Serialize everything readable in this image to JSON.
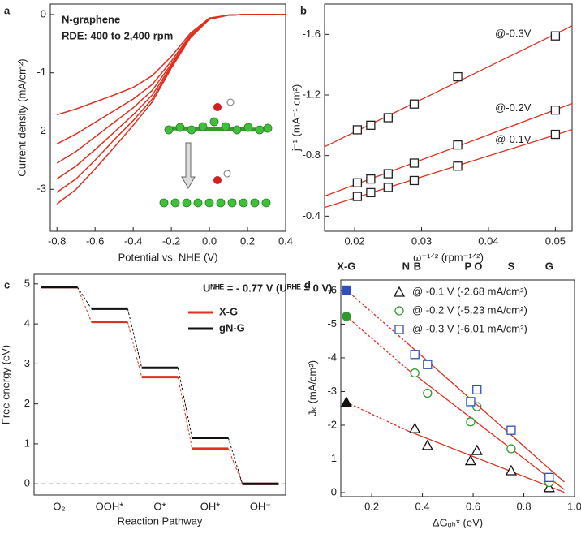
{
  "chart_data": [
    {
      "type": "line",
      "panel": "a",
      "title": "N-graphene",
      "subtitle": "RDE: 400 to 2,400 rpm",
      "x_label": "Potential vs. NHE (V)",
      "y_label": "Current density (mA/cm²)",
      "x": [
        -0.8,
        -0.7,
        -0.6,
        -0.5,
        -0.4,
        -0.3,
        -0.2,
        -0.1,
        0,
        0.1,
        0.2,
        0.3,
        0.4
      ],
      "series": [
        {
          "color": "#e03020",
          "values": [
            -1.72,
            -1.62,
            -1.5,
            -1.38,
            -1.25,
            -1.05,
            -0.72,
            -0.32,
            -0.06,
            -0.01,
            0,
            0,
            0
          ]
        },
        {
          "color": "#e03020",
          "values": [
            -2.22,
            -2.05,
            -1.85,
            -1.65,
            -1.45,
            -1.2,
            -0.8,
            -0.35,
            -0.07,
            -0.01,
            0,
            0,
            0
          ]
        },
        {
          "color": "#e03020",
          "values": [
            -2.55,
            -2.35,
            -2.1,
            -1.85,
            -1.6,
            -1.3,
            -0.85,
            -0.37,
            -0.07,
            -0.01,
            0,
            0,
            0
          ]
        },
        {
          "color": "#e03020",
          "values": [
            -2.82,
            -2.6,
            -2.32,
            -2.02,
            -1.72,
            -1.38,
            -0.88,
            -0.38,
            -0.08,
            -0.01,
            0,
            0,
            0
          ]
        },
        {
          "color": "#e03020",
          "values": [
            -3.05,
            -2.82,
            -2.5,
            -2.15,
            -1.82,
            -1.45,
            -0.9,
            -0.39,
            -0.08,
            -0.01,
            0,
            0,
            0
          ]
        },
        {
          "color": "#e03020",
          "values": [
            -3.25,
            -3.0,
            -2.65,
            -2.28,
            -1.9,
            -1.5,
            -0.92,
            -0.4,
            -0.08,
            -0.01,
            0,
            0,
            0
          ]
        }
      ],
      "xlim": [
        -0.835,
        0.4
      ],
      "xticks": [
        -0.8,
        -0.6,
        -0.4,
        -0.2,
        {
          "value": 0,
          "label": "0.0"
        },
        0.2,
        0.4
      ],
      "ylim": [
        -3.72,
        0.18
      ],
      "yticks": [
        -3,
        -2,
        -1,
        0
      ]
    },
    {
      "type": "scatter",
      "panel": "b",
      "trendline": "solid",
      "x_label": "ω⁻¹ᐟ² (rpm⁻¹ᐟ²)",
      "y_label": "j⁻¹ (mA⁻¹ cm²)",
      "x": [
        0.0204,
        0.0224,
        0.025,
        0.0289,
        0.0354,
        0.05
      ],
      "series": [
        {
          "name": "@-0.3V",
          "color": "#222222",
          "marker": "square",
          "values": [
            -0.97,
            -1.0,
            -1.05,
            -1.14,
            -1.32,
            -1.59
          ]
        },
        {
          "name": "@-0.2V",
          "color": "#222222",
          "marker": "square",
          "values": [
            -0.62,
            -0.645,
            -0.68,
            -0.75,
            -0.87,
            -1.1
          ]
        },
        {
          "name": "@-0.1V",
          "color": "#222222",
          "marker": "square",
          "values": [
            -0.53,
            -0.555,
            -0.59,
            -0.635,
            -0.73,
            -0.94
          ]
        }
      ],
      "trend_color": "#e03020",
      "xlim": [
        0.0155,
        0.0525
      ],
      "xticks": [
        0.02,
        0.03,
        0.04,
        0.05
      ],
      "ylim": [
        -0.3,
        -1.8
      ],
      "yticks": [
        -0.4,
        -0.8,
        -1.2,
        -1.6
      ]
    },
    {
      "type": "step",
      "panel": "c",
      "annotation": "Uᴺᴴᴱ = - 0.77 V (Uᴿᴴᴱ = 0 V)",
      "x_label": "Reaction Pathway",
      "y_label": "Free energy (eV)",
      "categories": [
        "O₂",
        "OOH*",
        "O*",
        "OH*",
        "OH⁻"
      ],
      "series": [
        {
          "name": "X-G",
          "color": "#e03020",
          "values": [
            4.92,
            4.05,
            2.67,
            0.88,
            0
          ]
        },
        {
          "name": "gN-G",
          "color": "#111111",
          "values": [
            4.92,
            4.38,
            2.9,
            1.15,
            0
          ]
        }
      ],
      "ylim": [
        -0.28,
        5.24
      ],
      "yticks": [
        0,
        1,
        2,
        3,
        4,
        5
      ]
    },
    {
      "type": "scatter",
      "panel": "d",
      "trendline": "dashed-extrapolation",
      "x_label": "ΔGₒₕ* (eV)",
      "y_label": "Jₖ (mA/cm²)",
      "top_labels": [
        {
          "label": "X-G",
          "x": 0.1
        },
        {
          "label": "N",
          "x": 0.335
        },
        {
          "label": "B",
          "x": 0.38
        },
        {
          "label": "P",
          "x": 0.58
        },
        {
          "label": "O",
          "x": 0.62
        },
        {
          "label": "S",
          "x": 0.75
        },
        {
          "label": "G",
          "x": 0.9
        }
      ],
      "x": [
        0.1,
        0.37,
        0.42,
        0.59,
        0.615,
        0.75,
        0.9
      ],
      "series": [
        {
          "name": "@ -0.1 V (-2.68 mA/cm²)",
          "color": "#111111",
          "marker": "triangle",
          "filled_points": [
            0
          ],
          "values": [
            -2.68,
            -1.9,
            -1.4,
            -0.95,
            -1.25,
            -0.65,
            -0.15
          ]
        },
        {
          "name": "@ -0.2 V (-5.23 mA/cm²)",
          "color": "#2e9a2e",
          "marker": "circle",
          "filled_points": [
            0
          ],
          "values": [
            -5.23,
            -3.55,
            -2.95,
            -2.1,
            -2.55,
            -1.3,
            -0.3
          ]
        },
        {
          "name": "@ -0.3 V (-6.01 mA/cm²)",
          "color": "#3050c0",
          "marker": "square",
          "filled_points": [
            0
          ],
          "values": [
            -6.01,
            -4.1,
            -3.8,
            -2.7,
            -3.05,
            -1.85,
            -0.45
          ]
        }
      ],
      "trend_color": "#e03020",
      "xlim": [
        0.078,
        1.0
      ],
      "xticks": [
        0.2,
        0.4,
        0.6,
        0.8,
        {
          "value": 1.0,
          "label": "1.0"
        }
      ],
      "ylim": [
        0.12,
        -6.31
      ],
      "yticks": [
        0,
        -1,
        -2,
        -3,
        -4,
        -5,
        -6
      ]
    }
  ]
}
